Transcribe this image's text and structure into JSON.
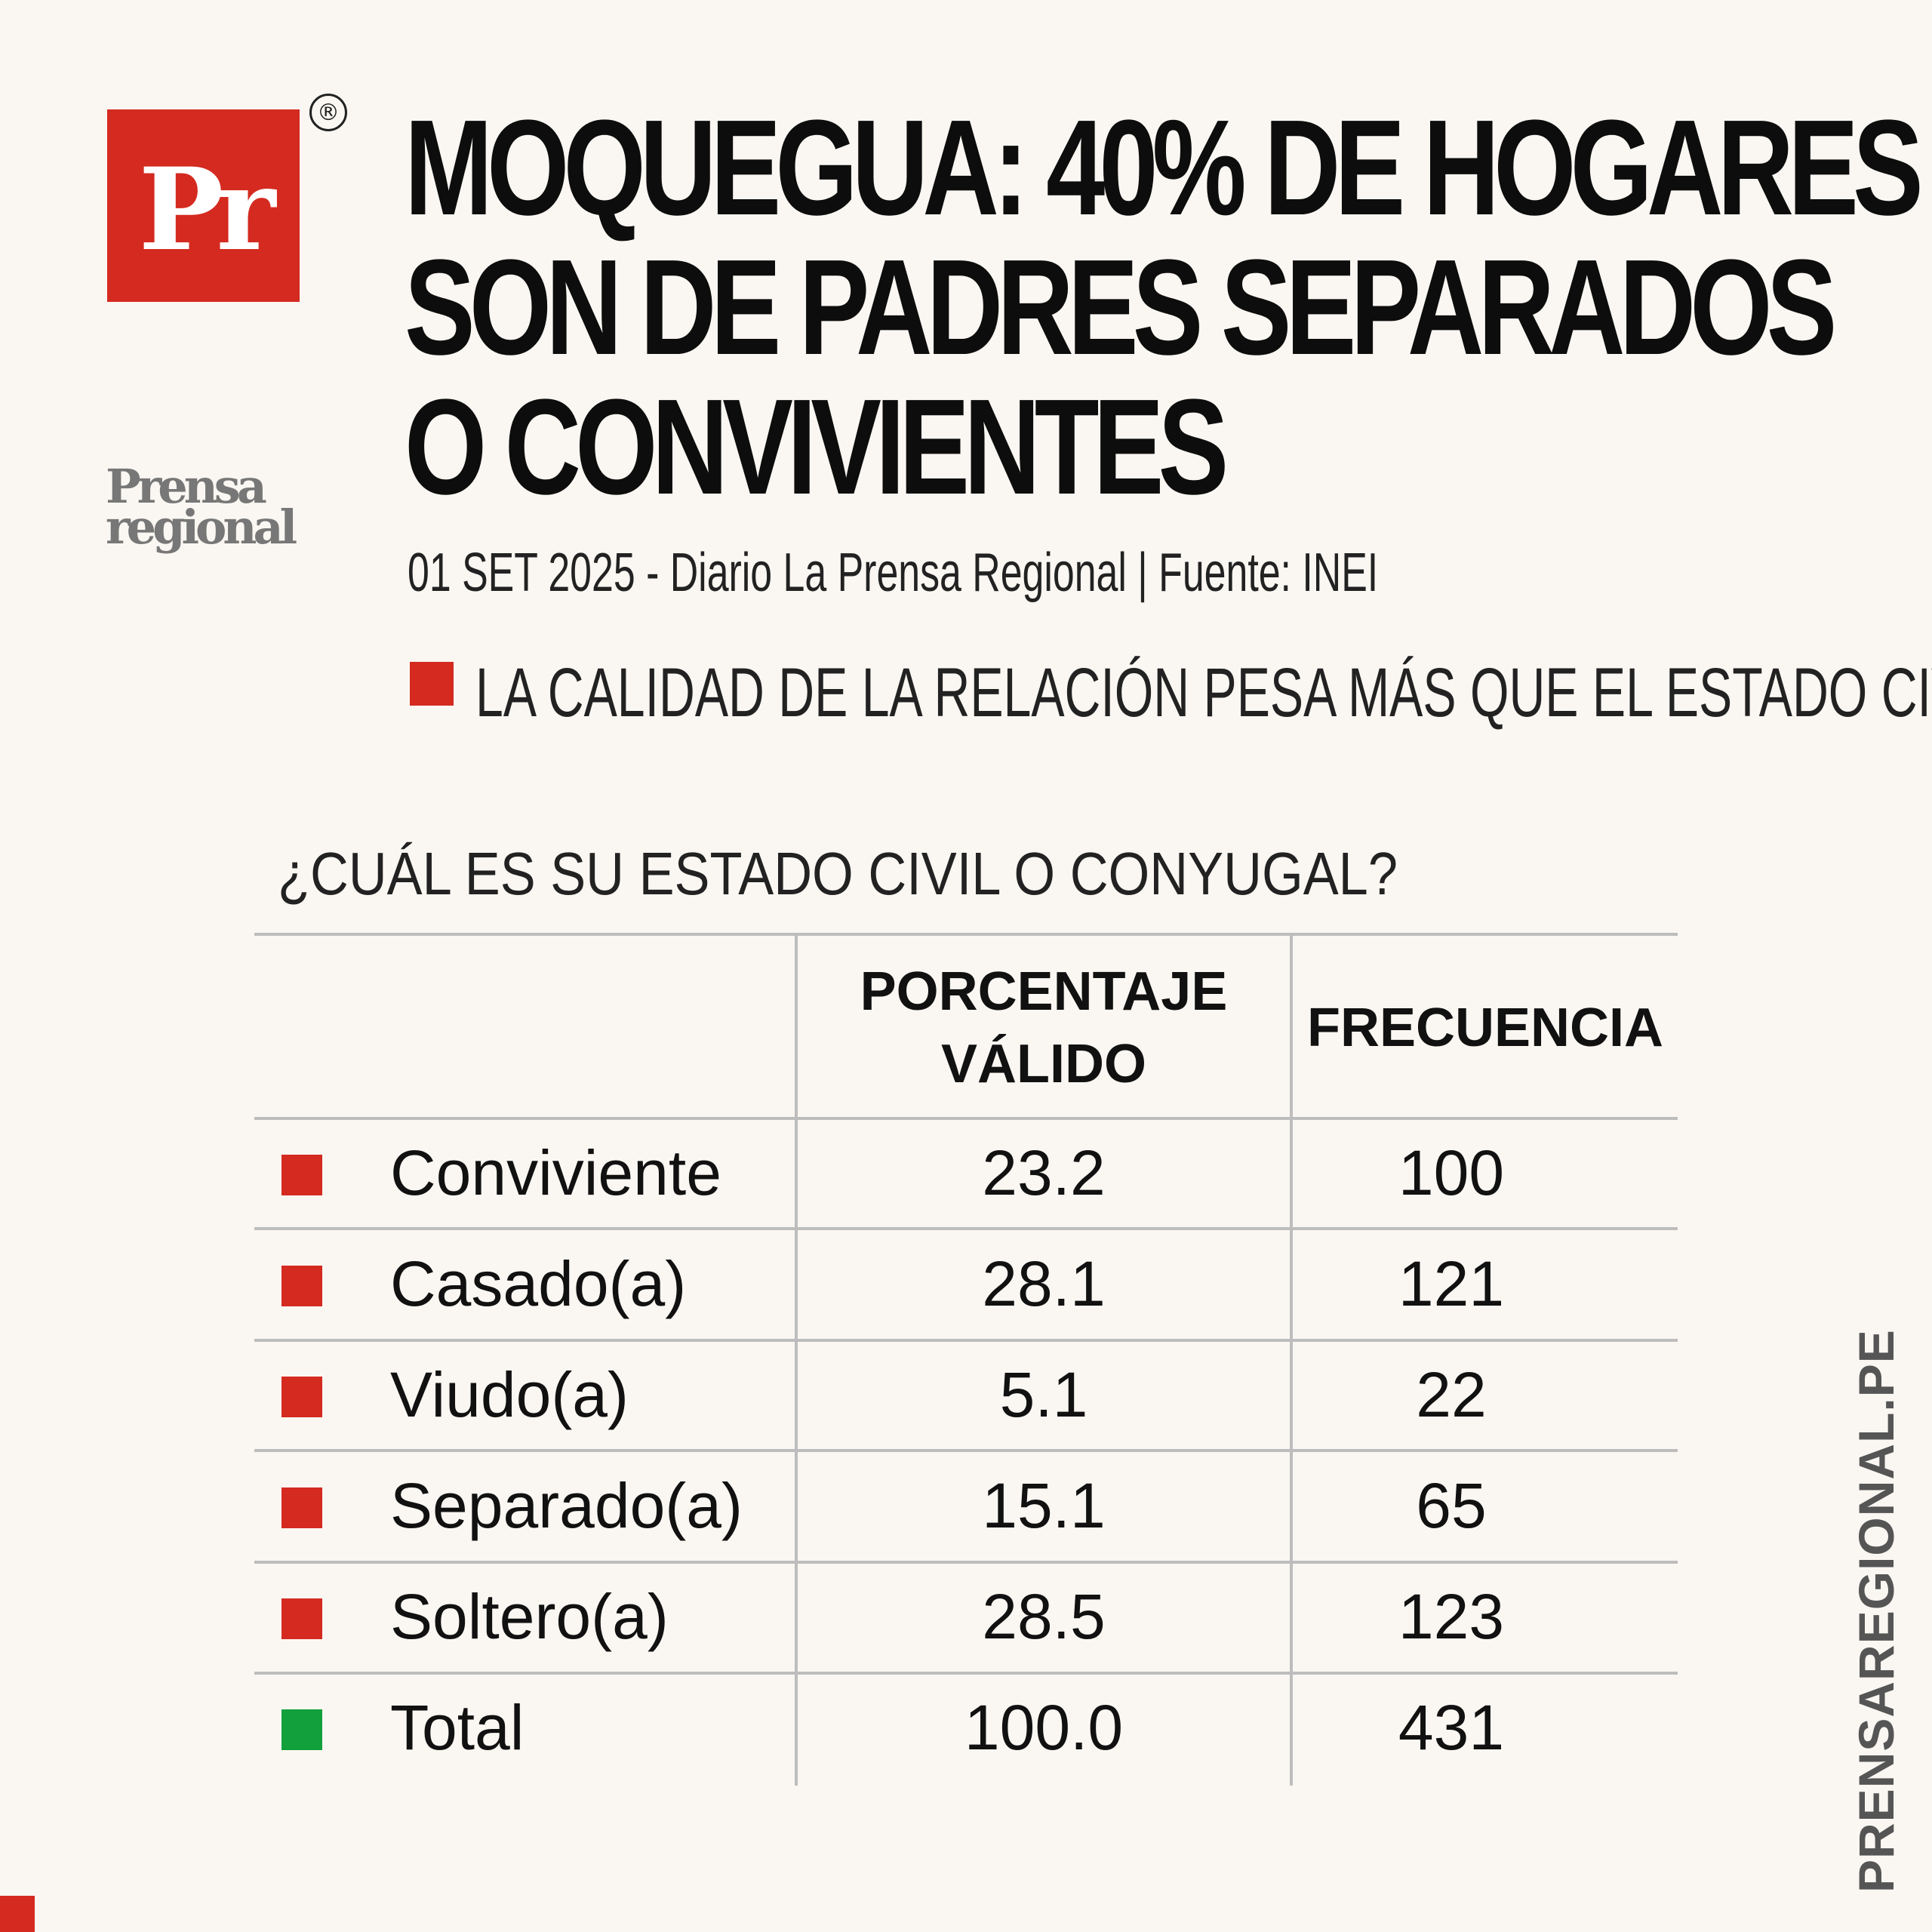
{
  "brand": {
    "logo_text": "Pr",
    "registered_mark": "®",
    "wordmark_line1": "Prensa",
    "wordmark_line2": "regional",
    "color": "#d42a20"
  },
  "headline": {
    "line1": "MOQUEGUA: 40% DE HOGARES",
    "line2": "SON DE PADRES SEPARADOS",
    "line3": "O CONVIVIENTES"
  },
  "dateline": "01 SET 2025 - Diario La Prensa Regional | Fuente: INEI",
  "kicker": "LA CALIDAD DE LA RELACIÓN PESA MÁS QUE EL ESTADO CIVIL",
  "question": "¿CUÁL ES SU ESTADO CIVIL O CONYUGAL?",
  "table": {
    "headers": {
      "percentage_line1": "PORCENTAJE",
      "percentage_line2": "VÁLIDO",
      "frequency": "FRECUENCIA"
    },
    "rows": [
      {
        "label": "Conviviente",
        "percentage": "23.2",
        "frequency": "100",
        "marker_color": "#d42a20"
      },
      {
        "label": "Casado(a)",
        "percentage": "28.1",
        "frequency": "121",
        "marker_color": "#d42a20"
      },
      {
        "label": "Viudo(a)",
        "percentage": "5.1",
        "frequency": "22",
        "marker_color": "#d42a20"
      },
      {
        "label": "Separado(a)",
        "percentage": "15.1",
        "frequency": "65",
        "marker_color": "#d42a20"
      },
      {
        "label": "Soltero(a)",
        "percentage": "28.5",
        "frequency": "123",
        "marker_color": "#d42a20"
      },
      {
        "label": "Total",
        "percentage": "100.0",
        "frequency": "431",
        "marker_color": "#12a03c"
      }
    ]
  },
  "side_url": "PRENSAREGIONAL.PE"
}
